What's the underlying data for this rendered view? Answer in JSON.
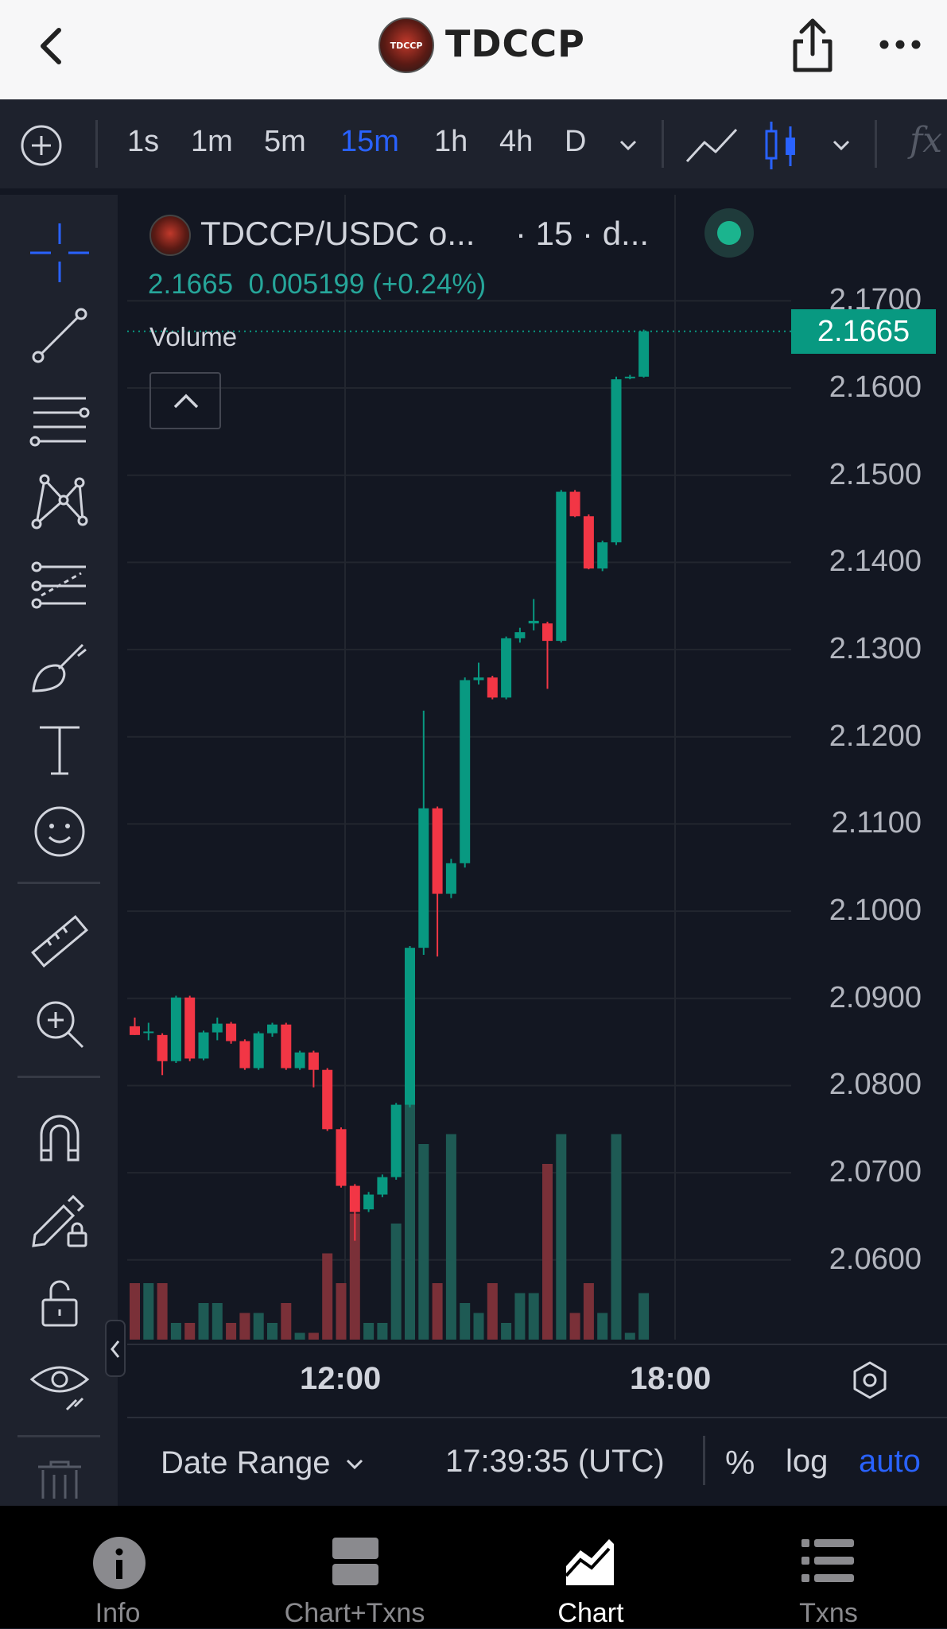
{
  "header": {
    "title": "TDCCP",
    "logo_text": "TDCCP"
  },
  "toolbar": {
    "timeframes": [
      "1s",
      "1m",
      "5m",
      "15m",
      "1h",
      "4h",
      "D"
    ],
    "active_timeframe": "15m",
    "indicator_label": "fx"
  },
  "legend": {
    "symbol": "TDCCP/USDC o...",
    "interval": "· 15 · d...",
    "price_line": "2.1665  0.005199 (+0.24%)",
    "volume_label": "Volume"
  },
  "chart_data": {
    "type": "candlestick",
    "title": "TDCCP/USDC",
    "interval": "15",
    "last_price": "2.1665",
    "change": "0.005199",
    "change_pct": "+0.24%",
    "price_ticks": [
      "2.1700",
      "2.1600",
      "2.1500",
      "2.1400",
      "2.1300",
      "2.1200",
      "2.1100",
      "2.1000",
      "2.0900",
      "2.0800",
      "2.0700",
      "2.0600"
    ],
    "time_ticks": [
      "12:00",
      "18:00"
    ],
    "ylim": [
      2.0505,
      2.1735
    ],
    "candles": [
      {
        "o": 2.0868,
        "h": 2.0878,
        "l": 2.0858,
        "c": 2.0858
      },
      {
        "o": 2.0862,
        "h": 2.0872,
        "l": 2.0852,
        "c": 2.0862
      },
      {
        "o": 2.0858,
        "h": 2.086,
        "l": 2.0812,
        "c": 2.0828
      },
      {
        "o": 2.0828,
        "h": 2.0903,
        "l": 2.0826,
        "c": 2.0901
      },
      {
        "o": 2.0901,
        "h": 2.0903,
        "l": 2.0828,
        "c": 2.0831
      },
      {
        "o": 2.0831,
        "h": 2.0863,
        "l": 2.0829,
        "c": 2.0861
      },
      {
        "o": 2.0861,
        "h": 2.0878,
        "l": 2.0852,
        "c": 2.0871
      },
      {
        "o": 2.0871,
        "h": 2.0873,
        "l": 2.0848,
        "c": 2.0851
      },
      {
        "o": 2.0851,
        "h": 2.0853,
        "l": 2.0818,
        "c": 2.082
      },
      {
        "o": 2.082,
        "h": 2.0862,
        "l": 2.0818,
        "c": 2.086
      },
      {
        "o": 2.086,
        "h": 2.0872,
        "l": 2.0856,
        "c": 2.087
      },
      {
        "o": 2.087,
        "h": 2.0872,
        "l": 2.0818,
        "c": 2.082
      },
      {
        "o": 2.082,
        "h": 2.084,
        "l": 2.0818,
        "c": 2.0838
      },
      {
        "o": 2.0838,
        "h": 2.084,
        "l": 2.0798,
        "c": 2.0818
      },
      {
        "o": 2.0818,
        "h": 2.082,
        "l": 2.0748,
        "c": 2.075
      },
      {
        "o": 2.075,
        "h": 2.0752,
        "l": 2.0683,
        "c": 2.0685
      },
      {
        "o": 2.0685,
        "h": 2.0687,
        "l": 2.0622,
        "c": 2.0655
      },
      {
        "o": 2.0658,
        "h": 2.0678,
        "l": 2.0655,
        "c": 2.0675
      },
      {
        "o": 2.0675,
        "h": 2.0698,
        "l": 2.0672,
        "c": 2.0695
      },
      {
        "o": 2.0695,
        "h": 2.078,
        "l": 2.0692,
        "c": 2.0778
      },
      {
        "o": 2.0778,
        "h": 2.096,
        "l": 2.0775,
        "c": 2.0958
      },
      {
        "o": 2.0958,
        "h": 2.123,
        "l": 2.095,
        "c": 2.1118
      },
      {
        "o": 2.1118,
        "h": 2.112,
        "l": 2.0948,
        "c": 2.102
      },
      {
        "o": 2.102,
        "h": 2.106,
        "l": 2.1015,
        "c": 2.1055
      },
      {
        "o": 2.1055,
        "h": 2.1268,
        "l": 2.105,
        "c": 2.1265
      },
      {
        "o": 2.1265,
        "h": 2.1285,
        "l": 2.126,
        "c": 2.1268
      },
      {
        "o": 2.1268,
        "h": 2.127,
        "l": 2.1243,
        "c": 2.1245
      },
      {
        "o": 2.1245,
        "h": 2.1315,
        "l": 2.1243,
        "c": 2.1313
      },
      {
        "o": 2.1313,
        "h": 2.1325,
        "l": 2.1308,
        "c": 2.132
      },
      {
        "o": 2.133,
        "h": 2.1358,
        "l": 2.1322,
        "c": 2.1333
      },
      {
        "o": 2.133,
        "h": 2.1332,
        "l": 2.1255,
        "c": 2.131
      },
      {
        "o": 2.131,
        "h": 2.1483,
        "l": 2.1308,
        "c": 2.1481
      },
      {
        "o": 2.1481,
        "h": 2.1483,
        "l": 2.1452,
        "c": 2.1453
      },
      {
        "o": 2.1453,
        "h": 2.1455,
        "l": 2.1392,
        "c": 2.1393
      },
      {
        "o": 2.1393,
        "h": 2.1425,
        "l": 2.139,
        "c": 2.1423
      },
      {
        "o": 2.1423,
        "h": 2.1613,
        "l": 2.142,
        "c": 2.161
      },
      {
        "o": 2.1613,
        "h": 2.1615,
        "l": 2.161,
        "c": 2.1613
      },
      {
        "o": 2.1613,
        "h": 2.1667,
        "l": 2.1612,
        "c": 2.1665
      }
    ],
    "volumes": [
      6,
      6,
      6,
      2,
      2,
      4,
      4,
      2,
      3,
      3,
      2,
      4,
      1,
      1,
      9,
      6,
      13,
      2,
      2,
      12,
      32,
      20,
      6,
      21,
      4,
      3,
      6,
      2,
      5,
      5,
      18,
      21,
      3,
      6,
      3,
      21,
      1,
      5
    ]
  },
  "time_axis": {
    "tick1": "12:00",
    "tick2": "18:00"
  },
  "bottom_bar": {
    "date_range": "Date Range",
    "clock": "17:39:35 (UTC)",
    "pct": "%",
    "log": "log",
    "auto": "auto"
  },
  "tabs": {
    "info": "Info",
    "chart_txns": "Chart+Txns",
    "chart": "Chart",
    "txns": "Txns",
    "active": "Chart"
  },
  "colors": {
    "up": "#089981",
    "down": "#f23645",
    "up_volume": "#1e5a54",
    "down_volume": "#7a3038",
    "accent": "#2962ff"
  }
}
